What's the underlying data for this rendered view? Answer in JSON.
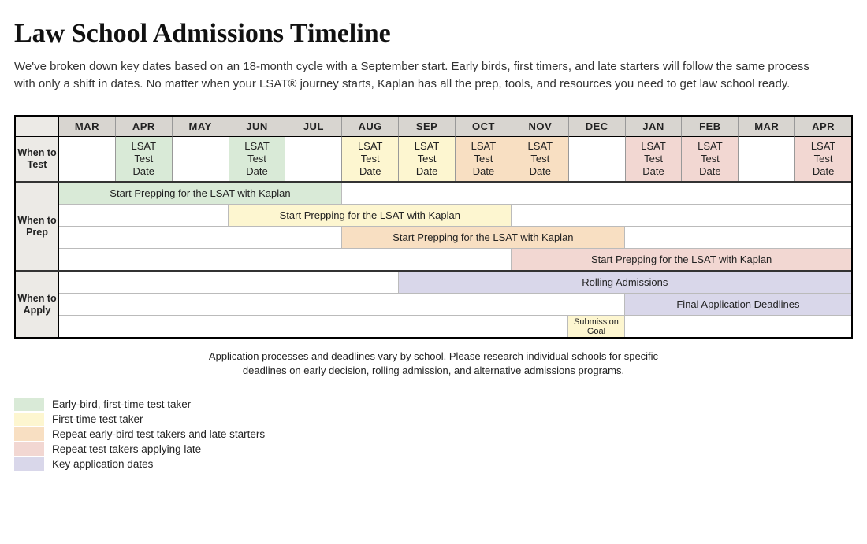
{
  "title": "Law School Admissions Timeline",
  "intro": "We've broken down key dates based on an 18-month cycle with a September start. Early birds, first timers, and late starters will follow the same process with only a shift in dates. No matter when your LSAT® journey starts, Kaplan has all the prep, tools, and resources you need to get law school ready.",
  "months": [
    "MAR",
    "APR",
    "MAY",
    "JUN",
    "JUL",
    "AUG",
    "SEP",
    "OCT",
    "NOV",
    "DEC",
    "JAN",
    "FEB",
    "MAR",
    "APR"
  ],
  "colors": {
    "early_bird": "#d9ead7",
    "first_time": "#fdf6d0",
    "repeat_early": "#f8dfc2",
    "repeat_late": "#f2d7d2",
    "key_dates": "#d9d7ea",
    "header_bg": "#d8d5d0",
    "label_bg": "#eceae6",
    "empty": "#ffffff"
  },
  "row_labels": {
    "test": "When to Test",
    "prep": "When to Prep",
    "apply": "When to Apply"
  },
  "test_cell_text": "LSAT\nTest\nDate",
  "test_cells": [
    "",
    "early_bird",
    "",
    "early_bird",
    "",
    "first_time",
    "first_time",
    "repeat_early",
    "repeat_early",
    "",
    "repeat_late",
    "repeat_late",
    "",
    "repeat_late"
  ],
  "prep_rows": [
    [
      {
        "span": 5,
        "color": "early_bird",
        "text": "Start Prepping for the LSAT with Kaplan"
      },
      {
        "span": 9,
        "color": "empty",
        "text": ""
      }
    ],
    [
      {
        "span": 3,
        "color": "empty",
        "text": ""
      },
      {
        "span": 5,
        "color": "first_time",
        "text": "Start Prepping for the LSAT with Kaplan"
      },
      {
        "span": 6,
        "color": "empty",
        "text": ""
      }
    ],
    [
      {
        "span": 5,
        "color": "empty",
        "text": ""
      },
      {
        "span": 5,
        "color": "repeat_early",
        "text": "Start Prepping for the LSAT with Kaplan"
      },
      {
        "span": 4,
        "color": "empty",
        "text": ""
      }
    ],
    [
      {
        "span": 8,
        "color": "empty",
        "text": ""
      },
      {
        "span": 6,
        "color": "repeat_late",
        "text": "Start Prepping for the LSAT with Kaplan"
      }
    ]
  ],
  "apply_rows": [
    [
      {
        "span": 6,
        "color": "empty",
        "text": ""
      },
      {
        "span": 8,
        "color": "key_dates",
        "text": "Rolling Admissions"
      }
    ],
    [
      {
        "span": 10,
        "color": "empty",
        "text": ""
      },
      {
        "span": 4,
        "color": "key_dates",
        "text": "Final Application Deadlines"
      }
    ],
    [
      {
        "span": 9,
        "color": "empty",
        "text": ""
      },
      {
        "span": 1,
        "color": "first_time",
        "text": "Submission Goal",
        "small": true
      },
      {
        "span": 4,
        "color": "empty",
        "text": ""
      }
    ]
  ],
  "footnote": "Application processes and deadlines vary by school. Please research individual schools for specific deadlines on early decision, rolling admission, and alternative admissions programs.",
  "legend": [
    {
      "color": "early_bird",
      "label": "Early-bird, first-time test taker"
    },
    {
      "color": "first_time",
      "label": "First-time test taker"
    },
    {
      "color": "repeat_early",
      "label": "Repeat early-bird test takers and late starters"
    },
    {
      "color": "repeat_late",
      "label": "Repeat test takers applying late"
    },
    {
      "color": "key_dates",
      "label": "Key application dates"
    }
  ]
}
